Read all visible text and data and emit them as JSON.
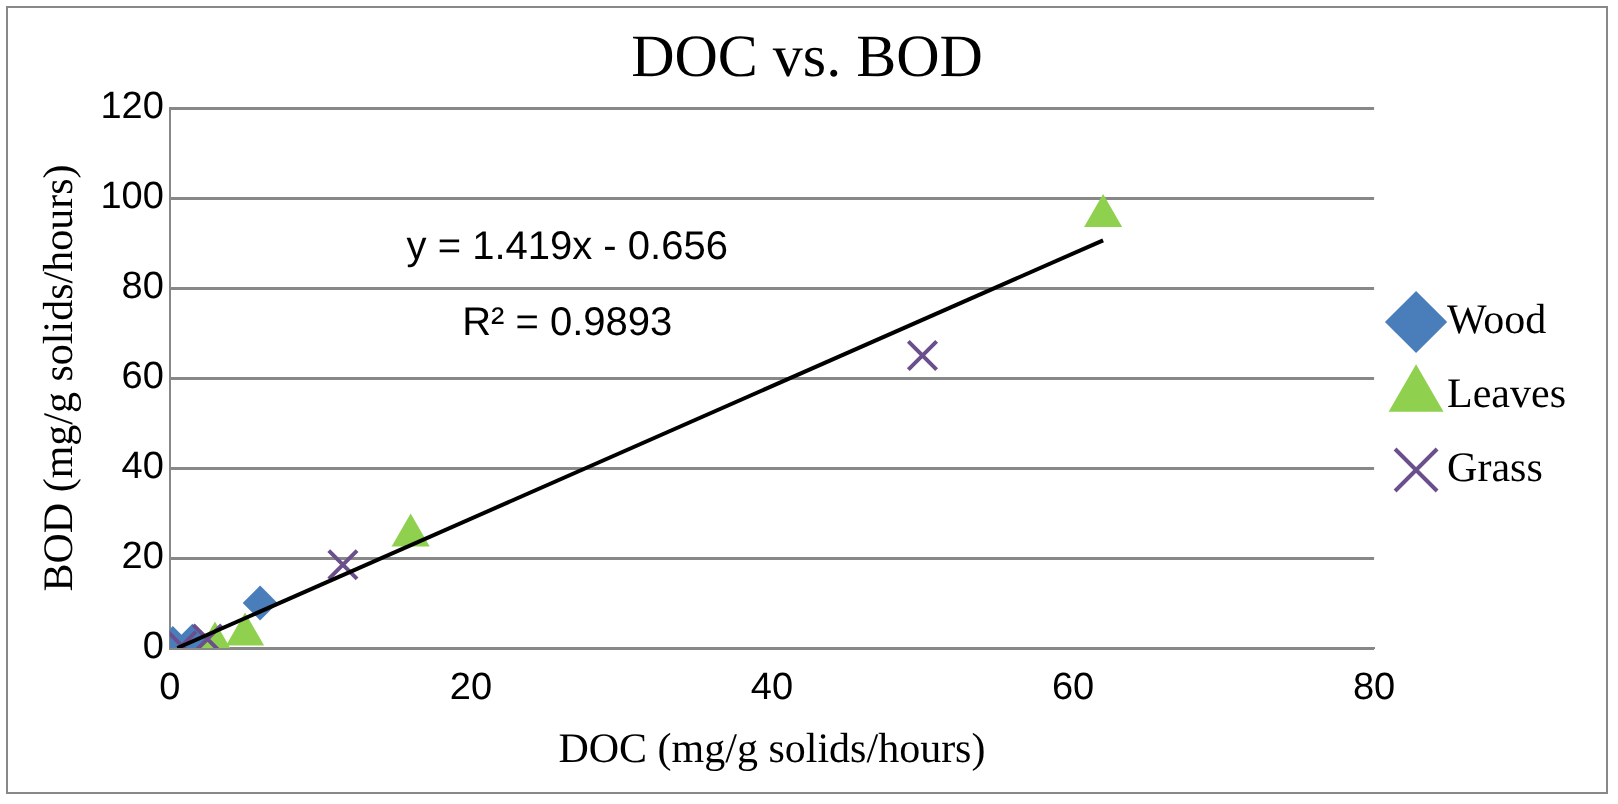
{
  "chart_data": {
    "type": "scatter",
    "title": "DOC vs. BOD",
    "xlabel": "DOC (mg/g solids/hours)",
    "ylabel": "BOD (mg/g solids/hours)",
    "xlim": [
      0,
      80
    ],
    "xticks": [
      0,
      20,
      40,
      60,
      80
    ],
    "ylim": [
      0,
      120
    ],
    "yticks": [
      0,
      20,
      40,
      60,
      80,
      100,
      120
    ],
    "grid": "y",
    "legend": "right",
    "series": [
      {
        "name": "Wood",
        "color": "#4a7ebb",
        "marker": "diamond",
        "x": [
          0.2,
          1.5,
          6
        ],
        "values": [
          1,
          1.5,
          10
        ]
      },
      {
        "name": "Leaves",
        "color": "#8fd14f",
        "marker": "triangle",
        "x": [
          3,
          5,
          16,
          62
        ],
        "values": [
          1,
          3,
          25,
          96
        ]
      },
      {
        "name": "Grass",
        "color": "#6b4f8c",
        "marker": "cross",
        "x": [
          0.8,
          2.5,
          11.5,
          50
        ],
        "values": [
          0.5,
          2,
          18.5,
          65
        ]
      },
      {
        "type": "line",
        "color": "#000000",
        "marker": "none",
        "x": [
          0.5,
          62
        ],
        "values": [
          0,
          90.6
        ]
      }
    ],
    "annotations": [
      "y = 1.419x - 0.656",
      "R² = 0.9893"
    ]
  }
}
